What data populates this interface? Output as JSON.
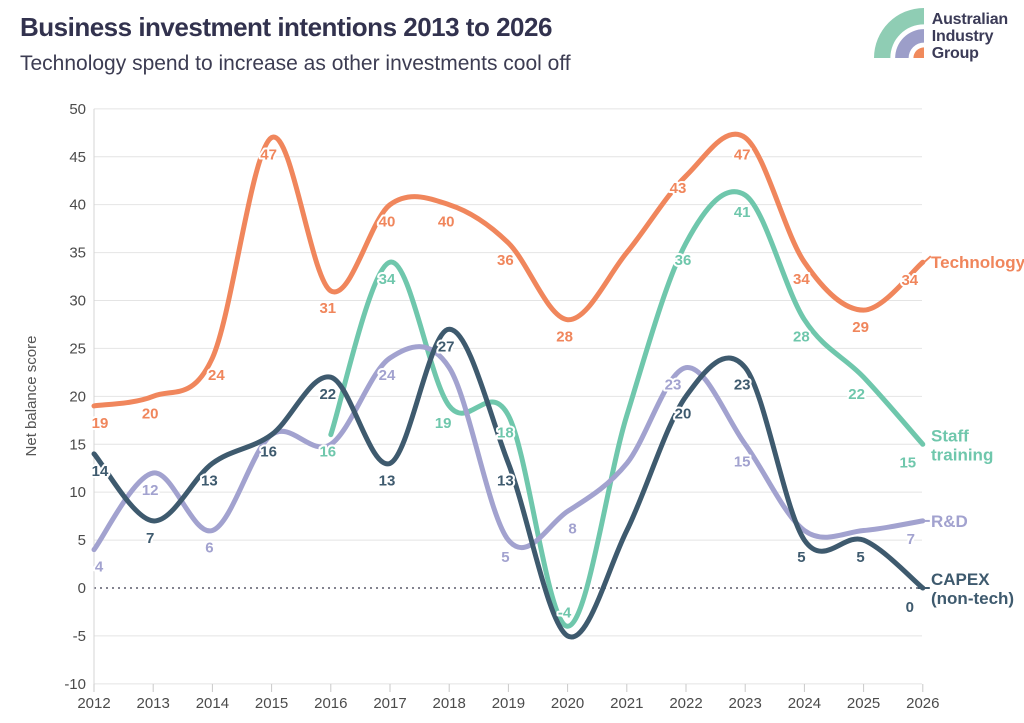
{
  "header": {
    "title": "Business investment intentions 2013 to 2026",
    "subtitle": "Technology spend to increase as other investments cool off"
  },
  "logo": {
    "lines": [
      "Australian",
      "Industry",
      "Group"
    ],
    "text_color": "#3B3B57",
    "emblem_colors": {
      "outer": "#8FCDB4",
      "middle": "#9C9EC9",
      "inner": "#F08A5C"
    }
  },
  "chart_data": {
    "type": "line",
    "title": "Business investment intentions 2013 to 2026",
    "subtitle": "Technology spend to increase as other investments cool off",
    "ylabel": "Net balance score",
    "ylim": [
      -10,
      50
    ],
    "ytick_step": 5,
    "y_ticks": [
      50,
      45,
      40,
      35,
      30,
      25,
      20,
      15,
      10,
      5,
      0,
      -5,
      -10
    ],
    "x": [
      2012,
      2013,
      2014,
      2015,
      2016,
      2017,
      2018,
      2019,
      2020,
      2021,
      2022,
      2023,
      2024,
      2025,
      2026
    ],
    "grid": "horizontal",
    "zero_line": "dotted",
    "legend_position": "right of line ends",
    "colors": {
      "grid": "#E4E4E4",
      "zero_line": "#5A5A6A",
      "axis": "#D5D5D5",
      "tick_text": "#4B4B4B"
    },
    "series": [
      {
        "name": "Technology",
        "id": "technology",
        "legend_lines": [
          "Technology"
        ],
        "legend_tick": "diagonal",
        "color": "#F0865C",
        "points": [
          {
            "x": 2012,
            "y": 19,
            "label": "19",
            "label_dx": 6
          },
          {
            "x": 2013,
            "y": 20,
            "label": "20"
          },
          {
            "x": 2014,
            "y": 24,
            "label": "24",
            "label_dx": 4
          },
          {
            "x": 2015,
            "y": 47,
            "label": "47"
          },
          {
            "x": 2016,
            "y": 31,
            "label": "31"
          },
          {
            "x": 2017,
            "y": 40,
            "label": "40"
          },
          {
            "x": 2018,
            "y": 40,
            "label": "40"
          },
          {
            "x": 2019,
            "y": 36,
            "label": "36"
          },
          {
            "x": 2020,
            "y": 28,
            "label": "28"
          },
          {
            "x": 2021,
            "y": 35,
            "label": null
          },
          {
            "x": 2022,
            "y": 43,
            "label": "43",
            "label_dx": -8,
            "label_dy": 12
          },
          {
            "x": 2023,
            "y": 47,
            "label": "47"
          },
          {
            "x": 2024,
            "y": 34,
            "label": "34"
          },
          {
            "x": 2025,
            "y": 29,
            "label": "29"
          },
          {
            "x": 2026,
            "y": 34,
            "label": "34",
            "label_dx": -13,
            "label_dy": 18
          }
        ]
      },
      {
        "name": "Staff training",
        "id": "staff-training",
        "legend_lines": [
          "Staff",
          "training"
        ],
        "legend_tick": "none",
        "color": "#6FC7AC",
        "points": [
          {
            "x": 2016,
            "y": 16,
            "label": "16"
          },
          {
            "x": 2017,
            "y": 34,
            "label": "34"
          },
          {
            "x": 2018,
            "y": 19,
            "label": "19",
            "label_dx": -6
          },
          {
            "x": 2019,
            "y": 18,
            "label": "18"
          },
          {
            "x": 2020,
            "y": -4,
            "label": "-4",
            "label_dy": -14
          },
          {
            "x": 2021,
            "y": 18,
            "label": null
          },
          {
            "x": 2022,
            "y": 36,
            "label": "36"
          },
          {
            "x": 2023,
            "y": 41,
            "label": "41"
          },
          {
            "x": 2024,
            "y": 28,
            "label": "28"
          },
          {
            "x": 2025,
            "y": 22,
            "label": "22",
            "label_dx": -7
          },
          {
            "x": 2026,
            "y": 15,
            "label": "15",
            "label_dx": -15,
            "label_dy": 18
          }
        ]
      },
      {
        "name": "R&D",
        "id": "r-and-d",
        "legend_lines": [
          "R&D"
        ],
        "legend_tick": "horizontal",
        "color": "#A2A2CF",
        "points": [
          {
            "x": 2012,
            "y": 4,
            "label": "4",
            "label_dx": 5
          },
          {
            "x": 2013,
            "y": 12,
            "label": "12"
          },
          {
            "x": 2014,
            "y": 6,
            "label": "6"
          },
          {
            "x": 2015,
            "y": 16,
            "label": null
          },
          {
            "x": 2016,
            "y": 15,
            "label": null
          },
          {
            "x": 2017,
            "y": 24,
            "label": "24"
          },
          {
            "x": 2018,
            "y": 23,
            "label": null
          },
          {
            "x": 2019,
            "y": 5,
            "label": "5"
          },
          {
            "x": 2020,
            "y": 8,
            "label": "8",
            "label_dx": 5
          },
          {
            "x": 2021,
            "y": 13,
            "label": null
          },
          {
            "x": 2022,
            "y": 23,
            "label": "23",
            "label_dx": -13
          },
          {
            "x": 2023,
            "y": 15,
            "label": "15"
          },
          {
            "x": 2024,
            "y": 6,
            "label": null
          },
          {
            "x": 2025,
            "y": 6,
            "label": null
          },
          {
            "x": 2026,
            "y": 7,
            "label": "7",
            "label_dx": -12,
            "label_dy": 18
          }
        ]
      },
      {
        "name": "CAPEX (non-tech)",
        "id": "capex-non-tech",
        "legend_lines": [
          "CAPEX",
          "(non-tech)"
        ],
        "legend_tick": "horizontal",
        "color": "#3E5A6E",
        "points": [
          {
            "x": 2012,
            "y": 14,
            "label": "14",
            "label_dx": 6
          },
          {
            "x": 2013,
            "y": 7,
            "label": "7"
          },
          {
            "x": 2014,
            "y": 13,
            "label": "13"
          },
          {
            "x": 2015,
            "y": 16,
            "label": "16"
          },
          {
            "x": 2016,
            "y": 22,
            "label": "22"
          },
          {
            "x": 2017,
            "y": 13,
            "label": "13"
          },
          {
            "x": 2018,
            "y": 27,
            "label": "27"
          },
          {
            "x": 2019,
            "y": 13,
            "label": "13"
          },
          {
            "x": 2020,
            "y": -5,
            "label": null
          },
          {
            "x": 2021,
            "y": 6,
            "label": null
          },
          {
            "x": 2022,
            "y": 20,
            "label": "20"
          },
          {
            "x": 2023,
            "y": 23,
            "label": "23"
          },
          {
            "x": 2024,
            "y": 5,
            "label": "5"
          },
          {
            "x": 2025,
            "y": 5,
            "label": "5"
          },
          {
            "x": 2026,
            "y": 0,
            "label": "0",
            "label_dx": -13,
            "label_dy": 19
          }
        ]
      }
    ]
  }
}
